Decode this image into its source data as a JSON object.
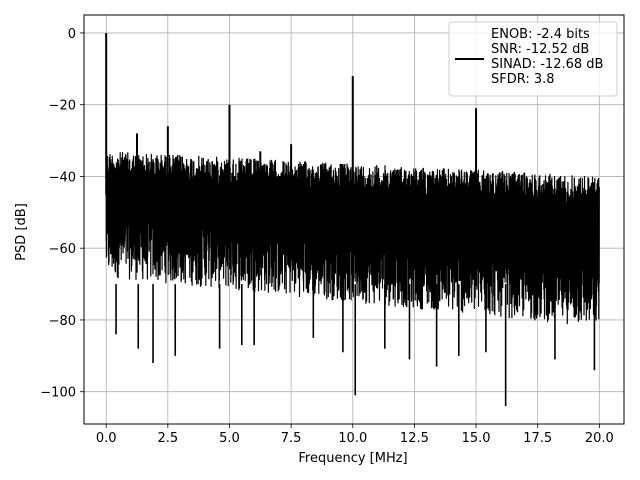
{
  "chart_data": {
    "type": "line",
    "xlabel": "Frequency [MHz]",
    "ylabel": "PSD [dB]",
    "xlim": [
      -0.9,
      21.0
    ],
    "ylim": [
      -109,
      5
    ],
    "xticks": [
      0.0,
      2.5,
      5.0,
      7.5,
      10.0,
      12.5,
      15.0,
      17.5,
      20.0
    ],
    "xtick_labels": [
      "0.0",
      "2.5",
      "5.0",
      "7.5",
      "10.0",
      "12.5",
      "15.0",
      "17.5",
      "20.0"
    ],
    "yticks": [
      0,
      -20,
      -40,
      -60,
      -80,
      -100
    ],
    "ytick_labels": [
      "0",
      "−20",
      "−40",
      "−60",
      "−80",
      "−100"
    ],
    "grid": true,
    "legend_position": "top-right",
    "series": [
      {
        "color": "#000000",
        "noise_band": {
          "x_start": 0.0,
          "x_end": 20.0,
          "upper_db": [
            -33,
            -40
          ],
          "lower_db": [
            -68,
            -82
          ]
        },
        "spikes": [
          {
            "x": 0.0,
            "y": 0
          },
          {
            "x": 1.25,
            "y": -28
          },
          {
            "x": 2.5,
            "y": -26
          },
          {
            "x": 5.0,
            "y": -20
          },
          {
            "x": 6.25,
            "y": -33
          },
          {
            "x": 7.5,
            "y": -31
          },
          {
            "x": 10.0,
            "y": -12
          },
          {
            "x": 15.0,
            "y": -21
          }
        ],
        "dips": [
          {
            "x": 0.4,
            "y": -84
          },
          {
            "x": 1.3,
            "y": -88
          },
          {
            "x": 1.9,
            "y": -92
          },
          {
            "x": 2.8,
            "y": -90
          },
          {
            "x": 4.6,
            "y": -88
          },
          {
            "x": 5.5,
            "y": -87
          },
          {
            "x": 6.0,
            "y": -87
          },
          {
            "x": 8.4,
            "y": -85
          },
          {
            "x": 9.6,
            "y": -89
          },
          {
            "x": 10.1,
            "y": -101
          },
          {
            "x": 11.3,
            "y": -88
          },
          {
            "x": 12.3,
            "y": -91
          },
          {
            "x": 13.4,
            "y": -93
          },
          {
            "x": 14.3,
            "y": -90
          },
          {
            "x": 15.4,
            "y": -89
          },
          {
            "x": 16.2,
            "y": -104
          },
          {
            "x": 18.2,
            "y": -91
          },
          {
            "x": 19.8,
            "y": -94
          }
        ]
      }
    ],
    "legend_entries": [
      "ENOB: -2.4 bits",
      "SNR: -12.52 dB",
      "SINAD: -12.68 dB",
      "SFDR: 3.8"
    ]
  }
}
